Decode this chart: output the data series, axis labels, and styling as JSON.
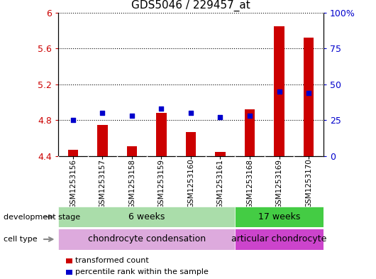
{
  "title": "GDS5046 / 229457_at",
  "samples": [
    "GSM1253156",
    "GSM1253157",
    "GSM1253158",
    "GSM1253159",
    "GSM1253160",
    "GSM1253161",
    "GSM1253168",
    "GSM1253169",
    "GSM1253170"
  ],
  "transformed_count": [
    4.47,
    4.75,
    4.51,
    4.88,
    4.67,
    4.45,
    4.92,
    5.85,
    5.72
  ],
  "percentile_rank": [
    25,
    30,
    28,
    33,
    30,
    27,
    28,
    45,
    44
  ],
  "ylim_left": [
    4.4,
    6.0
  ],
  "ylim_right": [
    0,
    100
  ],
  "yticks_left": [
    4.4,
    4.8,
    5.2,
    5.6,
    6.0
  ],
  "ytick_labels_left": [
    "4.4",
    "4.8",
    "5.2",
    "5.6",
    "6"
  ],
  "yticks_right": [
    0,
    25,
    50,
    75,
    100
  ],
  "ytick_labels_right": [
    "0",
    "25",
    "50",
    "75",
    "100%"
  ],
  "bar_color": "#cc0000",
  "dot_color": "#0000cc",
  "bar_bottom": 4.4,
  "development_stage_groups": [
    {
      "label": "6 weeks",
      "start": 0,
      "end": 6,
      "color": "#aaddaa"
    },
    {
      "label": "17 weeks",
      "start": 6,
      "end": 9,
      "color": "#44cc44"
    }
  ],
  "cell_type_groups": [
    {
      "label": "chondrocyte condensation",
      "start": 0,
      "end": 6,
      "color": "#ddaadd"
    },
    {
      "label": "articular chondrocyte",
      "start": 6,
      "end": 9,
      "color": "#cc44cc"
    }
  ],
  "sample_box_color": "#cccccc",
  "dev_stage_label": "development stage",
  "cell_type_label": "cell type",
  "legend_bar_label": "transformed count",
  "legend_dot_label": "percentile rank within the sample",
  "background_color": "#ffffff",
  "axis_label_color_left": "#cc0000",
  "axis_label_color_right": "#0000cc"
}
